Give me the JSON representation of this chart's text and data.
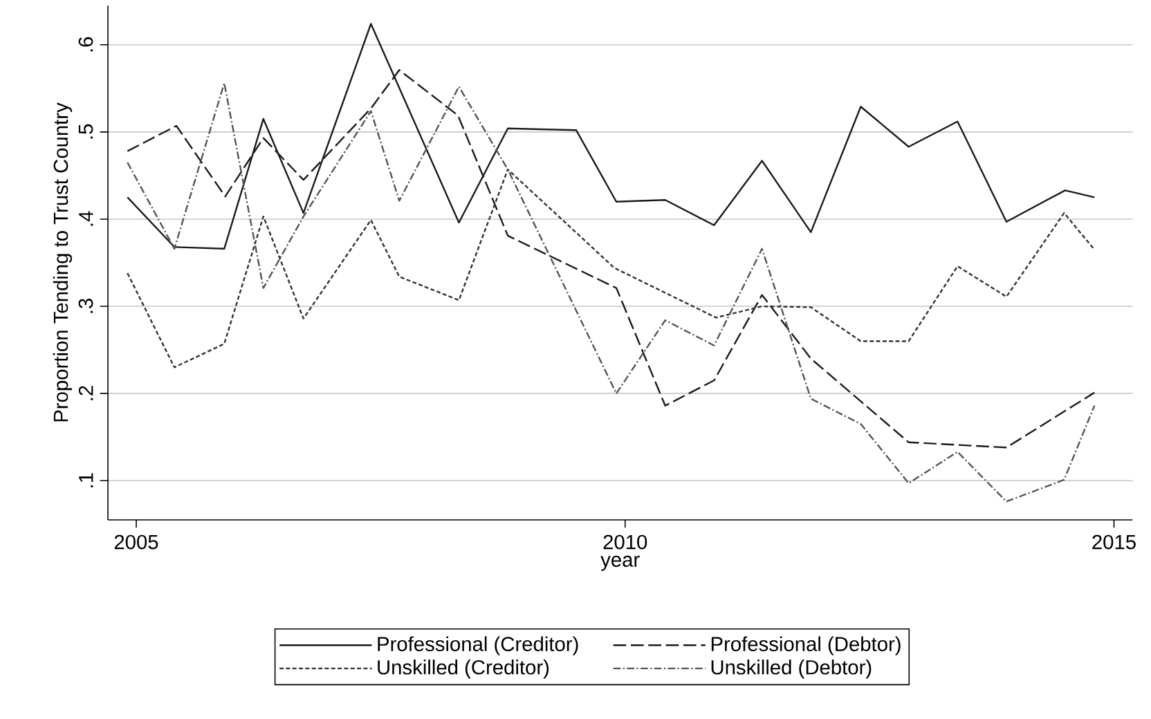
{
  "chart_data": {
    "type": "line",
    "xlabel": "year",
    "ylabel": "Proportion Tending to Trust Country",
    "xlim": [
      2004.71,
      2015.19
    ],
    "ylim": [
      0.055,
      0.645
    ],
    "xticks": [
      2005,
      2010,
      2015
    ],
    "yticks": [
      {
        "value": 0.1,
        "label": ".1"
      },
      {
        "value": 0.2,
        "label": ".2"
      },
      {
        "value": 0.3,
        "label": ".3"
      },
      {
        "value": 0.4,
        "label": ".4"
      },
      {
        "value": 0.5,
        "label": ".5"
      },
      {
        "value": 0.6,
        "label": ".6"
      }
    ],
    "grid": "y",
    "legend": "bottom",
    "marker": "none",
    "series": [
      {
        "name": "Professional (Creditor)",
        "color": "#1a1a1a",
        "line_style": "solid",
        "x": [
          2004.91,
          2005.39,
          2005.9,
          2006.3,
          2006.71,
          2007.4,
          2008.3,
          2008.8,
          2009.5,
          2009.91,
          2010.41,
          2010.91,
          2011.4,
          2011.9,
          2012.41,
          2012.9,
          2013.4,
          2013.9,
          2014.5,
          2014.8
        ],
        "values": [
          0.425,
          0.368,
          0.366,
          0.515,
          0.407,
          0.624,
          0.396,
          0.504,
          0.502,
          0.42,
          0.422,
          0.393,
          0.467,
          0.385,
          0.529,
          0.483,
          0.512,
          0.397,
          0.433,
          0.425
        ]
      },
      {
        "name": "Professional (Debtor)",
        "color": "#1a1a1a",
        "line_style": "dashed",
        "x": [
          2004.91,
          2005.41,
          2005.91,
          2006.3,
          2006.71,
          2007.4,
          2007.69,
          2008.29,
          2008.8,
          2009.91,
          2010.41,
          2010.91,
          2011.4,
          2011.9,
          2012.9,
          2013.9,
          2014.8
        ],
        "values": [
          0.478,
          0.507,
          0.426,
          0.493,
          0.445,
          0.527,
          0.571,
          0.519,
          0.381,
          0.321,
          0.186,
          0.215,
          0.313,
          0.24,
          0.144,
          0.138,
          0.201
        ]
      },
      {
        "name": "Unskilled (Creditor)",
        "color": "#333333",
        "line_style": "dotted",
        "x": [
          2004.91,
          2005.39,
          2005.9,
          2006.3,
          2006.71,
          2007.4,
          2007.69,
          2008.3,
          2008.8,
          2009.89,
          2010.93,
          2011.4,
          2011.9,
          2012.41,
          2012.9,
          2013.4,
          2013.9,
          2014.49,
          2014.8
        ],
        "values": [
          0.338,
          0.23,
          0.257,
          0.403,
          0.286,
          0.399,
          0.334,
          0.307,
          0.457,
          0.344,
          0.287,
          0.3,
          0.299,
          0.26,
          0.26,
          0.346,
          0.311,
          0.407,
          0.365
        ]
      },
      {
        "name": "Unskilled (Debtor)",
        "color": "#555555",
        "line_style": "dashdotted",
        "x": [
          2004.91,
          2005.39,
          2005.9,
          2006.3,
          2006.71,
          2007.4,
          2007.69,
          2008.3,
          2008.8,
          2009.91,
          2010.41,
          2010.91,
          2011.4,
          2011.9,
          2012.41,
          2012.9,
          2013.4,
          2013.9,
          2014.49,
          2014.8
        ],
        "values": [
          0.465,
          0.366,
          0.556,
          0.321,
          0.403,
          0.524,
          0.421,
          0.552,
          0.457,
          0.2,
          0.284,
          0.255,
          0.366,
          0.194,
          0.165,
          0.097,
          0.133,
          0.076,
          0.101,
          0.186
        ]
      }
    ]
  }
}
